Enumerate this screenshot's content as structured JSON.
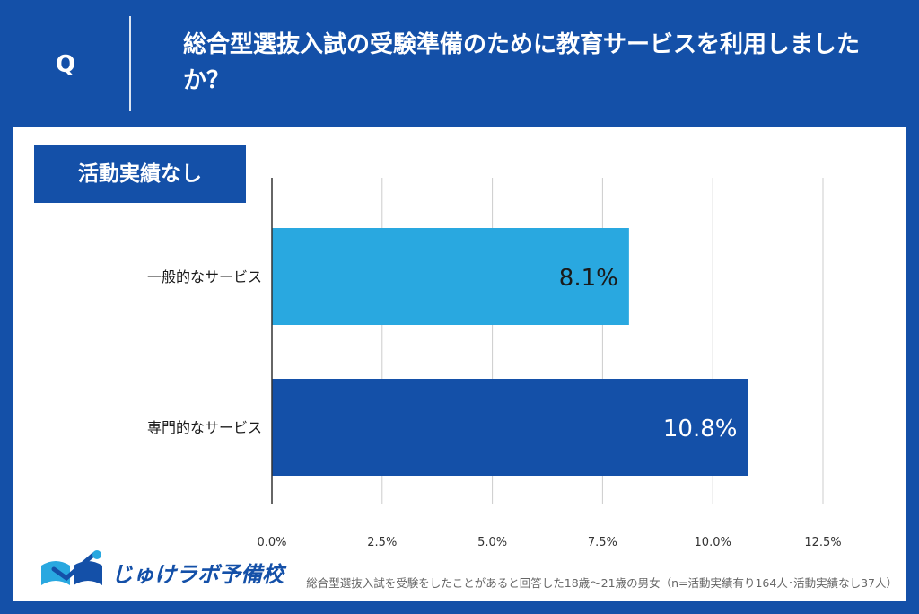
{
  "header": {
    "q_label": "Q",
    "question": "総合型選抜入試の受験準備のために教育サービスを利用しましたか？"
  },
  "group_label": "活動実績なし",
  "chart_data": {
    "type": "bar",
    "orientation": "horizontal",
    "categories": [
      "一般的なサービス",
      "専門的なサービス"
    ],
    "values": [
      8.1,
      10.8
    ],
    "value_labels": [
      "8.1%",
      "10.8%"
    ],
    "bar_colors": [
      "#29a8e0",
      "#1450a8"
    ],
    "label_colors": [
      "#1a1a1a",
      "#ffffff"
    ],
    "xlim": [
      0,
      12.5
    ],
    "ticks": [
      0,
      2.5,
      5,
      7.5,
      10,
      12.5
    ],
    "tick_labels": [
      "0.0%",
      "2.5%",
      "5.0%",
      "7.5%",
      "10.0%",
      "12.5%"
    ],
    "grid": true,
    "xlabel": "",
    "ylabel": ""
  },
  "logo": {
    "text": "じゅけラボ予備校"
  },
  "footnote": "総合型選抜入試を受験をしたことがあると回答した18歳～21歳の男女（n=活動実績有り164人･活動実績なし37人）",
  "colors": {
    "background": "#1450a8",
    "card": "#ffffff",
    "gridline": "#cccccc",
    "axis": "#333333"
  }
}
